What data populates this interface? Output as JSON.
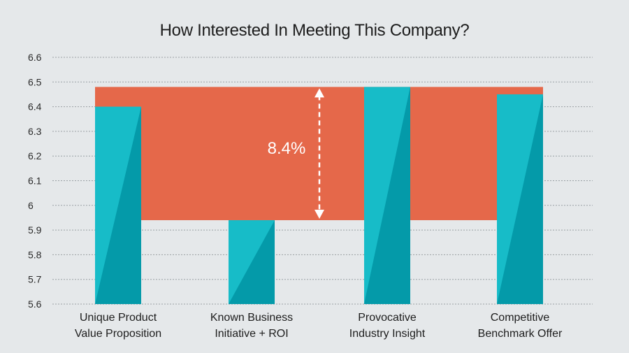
{
  "chart_data": {
    "type": "bar",
    "title": "How Interested In Meeting This Company?",
    "categories": [
      [
        "Unique Product",
        "Value Proposition"
      ],
      [
        "Known Business",
        "Initiative + ROI"
      ],
      [
        "Provocative",
        "Industry Insight"
      ],
      [
        "Competitive",
        "Benchmark Offer"
      ]
    ],
    "values": [
      6.4,
      5.94,
      6.48,
      6.45
    ],
    "ylim": [
      5.6,
      6.6
    ],
    "yticks": [
      "5.6",
      "5.7",
      "5.8",
      "5.9",
      "6",
      "6.1",
      "6.2",
      "6.3",
      "6.4",
      "6.5",
      "6.6"
    ],
    "grid": true,
    "annotation": {
      "label": "8.4%",
      "range": [
        5.94,
        6.48
      ]
    },
    "colors": {
      "bar_light": "#17bcc8",
      "bar_dark": "#049aa9",
      "band": "#e5684a",
      "grid": "#9aa0a4",
      "background": "#e5e8ea"
    }
  }
}
